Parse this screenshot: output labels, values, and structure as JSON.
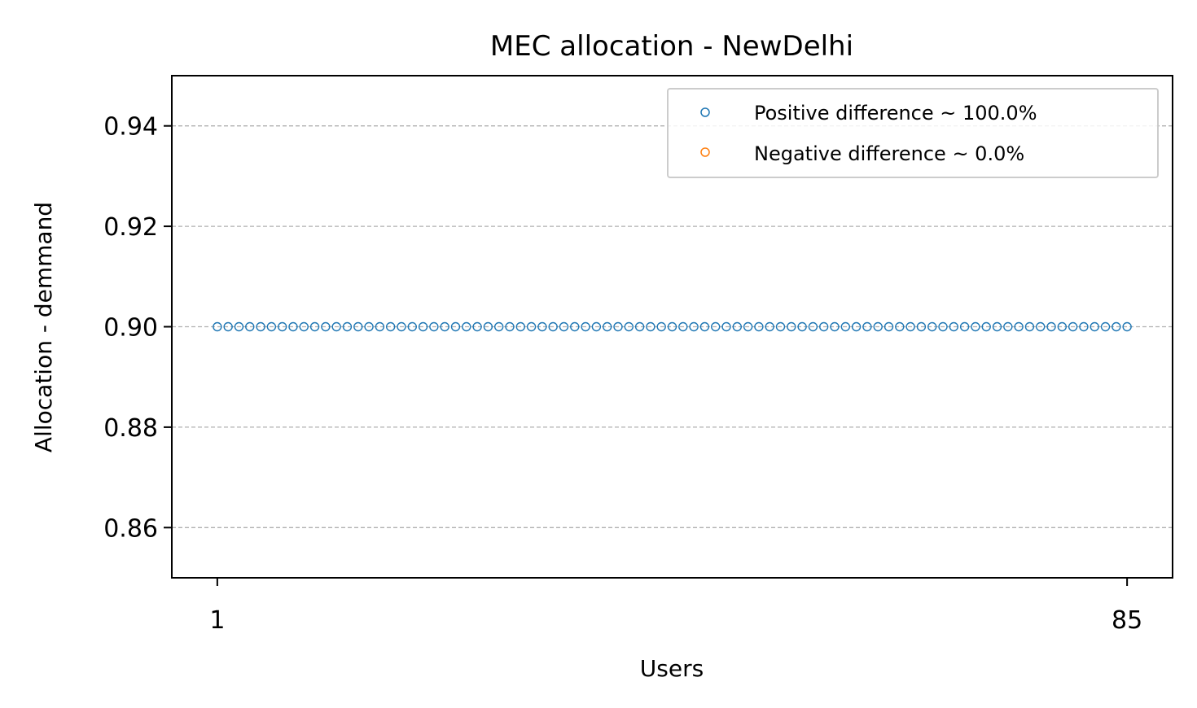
{
  "chart_data": {
    "type": "scatter",
    "title": "MEC allocation - NewDelhi",
    "xlabel": "Users",
    "ylabel": "Allocation - demmand",
    "xlim": [
      -3.2,
      89.2
    ],
    "ylim": [
      0.85,
      0.95
    ],
    "xticks": [
      "1",
      "85"
    ],
    "xtick_values": [
      1,
      85
    ],
    "yticks": [
      "0.86",
      "0.88",
      "0.90",
      "0.92",
      "0.94"
    ],
    "ytick_values": [
      0.86,
      0.88,
      0.9,
      0.92,
      0.94
    ],
    "grid": "y-dashed",
    "legend_position": "upper right",
    "series": [
      {
        "name": "Positive difference ~ 100.0%",
        "color": "#1f77b4",
        "marker": "hollow-circle",
        "x_start": 1,
        "x_end": 85,
        "y": 0.9
      },
      {
        "name": "Negative difference ~ 0.0%",
        "color": "#ff7f0e",
        "marker": "hollow-circle",
        "points": []
      }
    ]
  }
}
